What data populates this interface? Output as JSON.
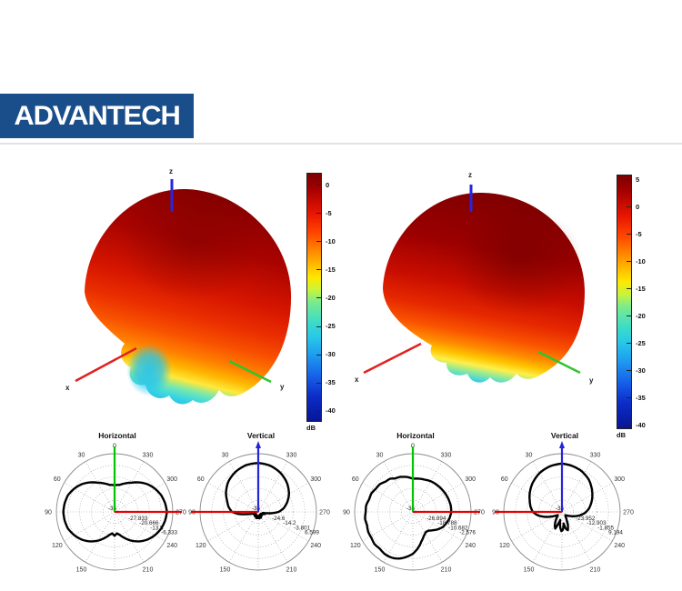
{
  "page": {
    "background": "#ffffff",
    "divider_color": "#e2e2e2"
  },
  "logo": {
    "text": "ADVANTECH",
    "bg_color": "#1a4e8a",
    "text_color": "#ffffff"
  },
  "chart_data": [
    {
      "id": "pattern-3d-left",
      "type": "3d-surface-radiation-pattern",
      "colormap": "jet",
      "axis_labels": {
        "x": "x",
        "y": "y",
        "z": "z"
      },
      "axis_colors": {
        "x": "#e32020",
        "y": "#2fc42f",
        "z": "#2626de"
      },
      "colorbar": {
        "unit": "dB",
        "ticks": [
          "0",
          "-5",
          "-10",
          "-15",
          "-20",
          "-25",
          "-30",
          "-35",
          "-40"
        ],
        "range": [
          0,
          -40
        ]
      }
    },
    {
      "id": "pattern-3d-right",
      "type": "3d-surface-radiation-pattern",
      "colormap": "jet",
      "axis_labels": {
        "x": "x",
        "y": "y",
        "z": "z"
      },
      "axis_colors": {
        "x": "#e32020",
        "y": "#2fc42f",
        "z": "#2626de"
      },
      "colorbar": {
        "unit": "dB",
        "ticks": [
          "5",
          "0",
          "-5",
          "-10",
          "-15",
          "-20",
          "-25",
          "-30",
          "-35",
          "-40"
        ],
        "range": [
          5,
          -40
        ]
      }
    },
    {
      "id": "polar-horizontal-left",
      "type": "polar",
      "title": "Horizontal",
      "angle_ticks_deg": [
        0,
        30,
        60,
        90,
        120,
        150,
        210,
        240,
        270,
        300,
        330
      ],
      "radial_tick_labels": [
        "-35",
        "-27.833",
        "-20.666",
        "-13.5",
        "-6.333"
      ],
      "vertical_axis_color": "#00c400",
      "horizontal_axis_color": "#e60000",
      "horizontal_axis_dir": "right",
      "vertical_axis_arrow": false,
      "curve_r_normalized": [
        [
          0,
          0.46
        ],
        [
          10,
          0.47
        ],
        [
          20,
          0.52
        ],
        [
          30,
          0.58
        ],
        [
          40,
          0.66
        ],
        [
          50,
          0.74
        ],
        [
          60,
          0.8
        ],
        [
          70,
          0.85
        ],
        [
          80,
          0.87
        ],
        [
          90,
          0.88
        ],
        [
          100,
          0.87
        ],
        [
          110,
          0.85
        ],
        [
          120,
          0.8
        ],
        [
          130,
          0.74
        ],
        [
          140,
          0.66
        ],
        [
          150,
          0.57
        ],
        [
          160,
          0.47
        ],
        [
          168,
          0.4
        ],
        [
          174,
          0.37
        ],
        [
          180,
          0.41
        ],
        [
          186,
          0.37
        ],
        [
          192,
          0.4
        ],
        [
          200,
          0.47
        ],
        [
          210,
          0.57
        ],
        [
          220,
          0.66
        ],
        [
          230,
          0.74
        ],
        [
          240,
          0.8
        ],
        [
          250,
          0.85
        ],
        [
          260,
          0.88
        ],
        [
          270,
          0.9
        ],
        [
          280,
          0.88
        ],
        [
          290,
          0.85
        ],
        [
          300,
          0.8
        ],
        [
          310,
          0.74
        ],
        [
          320,
          0.66
        ],
        [
          330,
          0.58
        ],
        [
          340,
          0.52
        ],
        [
          350,
          0.47
        ],
        [
          360,
          0.46
        ]
      ]
    },
    {
      "id": "polar-vertical-left",
      "type": "polar",
      "title": "Vertical",
      "angle_ticks_deg": [
        30,
        60,
        90,
        120,
        150,
        210,
        240,
        270,
        300,
        330
      ],
      "radial_tick_labels": [
        "-35",
        "-24.6",
        "-14.2",
        "-3.801",
        "6.599"
      ],
      "vertical_axis_color": "#2424d8",
      "horizontal_axis_color": "#e60000",
      "horizontal_axis_dir": "left",
      "vertical_axis_arrow": true,
      "curve_r_normalized": [
        [
          0,
          0.84
        ],
        [
          15,
          0.83
        ],
        [
          30,
          0.79
        ],
        [
          45,
          0.73
        ],
        [
          60,
          0.64
        ],
        [
          70,
          0.57
        ],
        [
          80,
          0.52
        ],
        [
          90,
          0.45
        ],
        [
          96,
          0.34
        ],
        [
          102,
          0.18
        ],
        [
          108,
          0.08
        ],
        [
          115,
          0.05
        ],
        [
          125,
          0.09
        ],
        [
          135,
          0.05
        ],
        [
          145,
          0.1
        ],
        [
          155,
          0.06
        ],
        [
          163,
          0.12
        ],
        [
          170,
          0.07
        ],
        [
          177,
          0.11
        ],
        [
          184,
          0.08
        ],
        [
          191,
          0.12
        ],
        [
          198,
          0.06
        ],
        [
          206,
          0.11
        ],
        [
          215,
          0.05
        ],
        [
          225,
          0.09
        ],
        [
          235,
          0.05
        ],
        [
          245,
          0.08
        ],
        [
          252,
          0.12
        ],
        [
          258,
          0.08
        ],
        [
          264,
          0.22
        ],
        [
          270,
          0.35
        ],
        [
          278,
          0.44
        ],
        [
          288,
          0.52
        ],
        [
          300,
          0.61
        ],
        [
          315,
          0.7
        ],
        [
          330,
          0.77
        ],
        [
          345,
          0.82
        ],
        [
          360,
          0.84
        ]
      ]
    },
    {
      "id": "polar-horizontal-right",
      "type": "polar",
      "title": "Horizontal",
      "angle_ticks_deg": [
        0,
        30,
        60,
        90,
        120,
        150,
        210,
        240,
        270,
        300,
        330
      ],
      "radial_tick_labels": [
        "-35",
        "-26.894",
        "-18.788",
        "-10.682",
        "-2.576"
      ],
      "vertical_axis_color": "#00c400",
      "horizontal_axis_color": "#e60000",
      "horizontal_axis_dir": "right",
      "vertical_axis_arrow": false,
      "curve_r_normalized": [
        [
          0,
          0.57
        ],
        [
          10,
          0.61
        ],
        [
          20,
          0.64
        ],
        [
          28,
          0.65
        ],
        [
          34,
          0.69
        ],
        [
          42,
          0.7
        ],
        [
          50,
          0.74
        ],
        [
          58,
          0.75
        ],
        [
          66,
          0.78
        ],
        [
          74,
          0.78
        ],
        [
          82,
          0.81
        ],
        [
          90,
          0.81
        ],
        [
          98,
          0.83
        ],
        [
          106,
          0.82
        ],
        [
          114,
          0.84
        ],
        [
          122,
          0.84
        ],
        [
          130,
          0.86
        ],
        [
          138,
          0.85
        ],
        [
          146,
          0.87
        ],
        [
          152,
          0.87
        ],
        [
          158,
          0.86
        ],
        [
          165,
          0.83
        ],
        [
          172,
          0.78
        ],
        [
          180,
          0.72
        ],
        [
          188,
          0.63
        ],
        [
          196,
          0.53
        ],
        [
          205,
          0.45
        ],
        [
          213,
          0.41
        ],
        [
          220,
          0.42
        ],
        [
          228,
          0.47
        ],
        [
          236,
          0.53
        ],
        [
          244,
          0.58
        ],
        [
          252,
          0.61
        ],
        [
          260,
          0.64
        ],
        [
          270,
          0.66
        ],
        [
          280,
          0.66
        ],
        [
          290,
          0.65
        ],
        [
          300,
          0.64
        ],
        [
          310,
          0.63
        ],
        [
          320,
          0.62
        ],
        [
          330,
          0.61
        ],
        [
          340,
          0.59
        ],
        [
          350,
          0.58
        ],
        [
          360,
          0.57
        ]
      ]
    },
    {
      "id": "polar-vertical-right",
      "type": "polar",
      "title": "Vertical",
      "angle_ticks_deg": [
        30,
        60,
        90,
        120,
        150,
        210,
        240,
        270,
        300,
        330
      ],
      "radial_tick_labels": [
        "-35",
        "-23.952",
        "-12.903",
        "-1.855",
        "9.194"
      ],
      "vertical_axis_color": "#2424d8",
      "horizontal_axis_color": "#e60000",
      "horizontal_axis_dir": "left",
      "vertical_axis_arrow": true,
      "curve_r_normalized": [
        [
          0,
          0.83
        ],
        [
          15,
          0.81
        ],
        [
          30,
          0.77
        ],
        [
          45,
          0.71
        ],
        [
          60,
          0.64
        ],
        [
          70,
          0.59
        ],
        [
          80,
          0.55
        ],
        [
          90,
          0.5
        ],
        [
          98,
          0.42
        ],
        [
          105,
          0.32
        ],
        [
          112,
          0.22
        ],
        [
          120,
          0.13
        ],
        [
          128,
          0.09
        ],
        [
          136,
          0.12
        ],
        [
          144,
          0.18
        ],
        [
          152,
          0.26
        ],
        [
          158,
          0.31
        ],
        [
          163,
          0.2
        ],
        [
          168,
          0.14
        ],
        [
          173,
          0.26
        ],
        [
          178,
          0.33
        ],
        [
          183,
          0.31
        ],
        [
          188,
          0.2
        ],
        [
          193,
          0.3
        ],
        [
          198,
          0.33
        ],
        [
          204,
          0.25
        ],
        [
          210,
          0.16
        ],
        [
          218,
          0.1
        ],
        [
          226,
          0.08
        ],
        [
          235,
          0.11
        ],
        [
          244,
          0.16
        ],
        [
          252,
          0.24
        ],
        [
          260,
          0.32
        ],
        [
          268,
          0.4
        ],
        [
          276,
          0.46
        ],
        [
          286,
          0.52
        ],
        [
          296,
          0.58
        ],
        [
          308,
          0.65
        ],
        [
          320,
          0.72
        ],
        [
          335,
          0.78
        ],
        [
          348,
          0.81
        ],
        [
          360,
          0.83
        ]
      ]
    }
  ]
}
